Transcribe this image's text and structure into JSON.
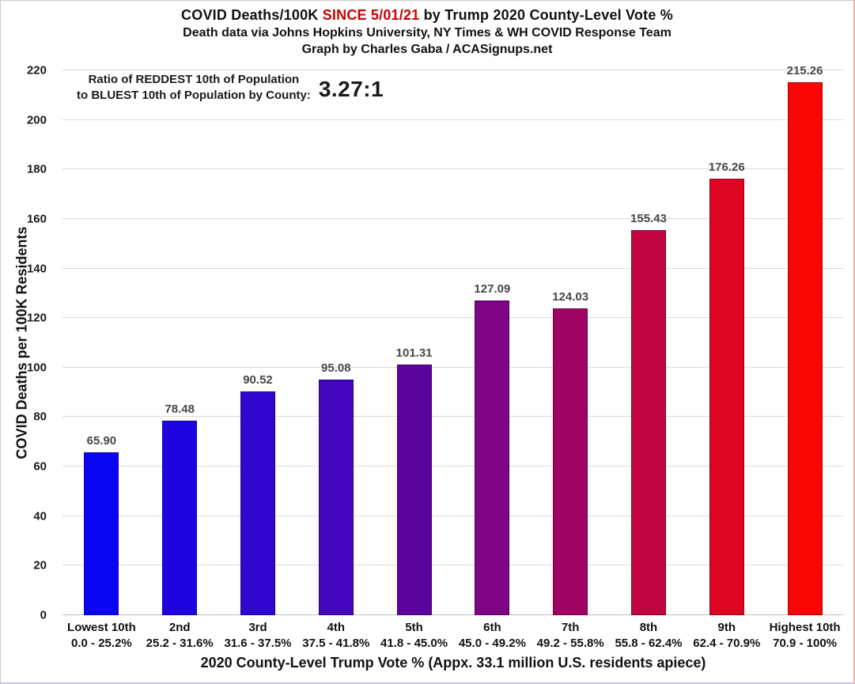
{
  "header": {
    "title_part1": "COVID Deaths/100K ",
    "title_highlight": "SINCE 5/01/21",
    "title_part2": " by Trump 2020 County-Level Vote %",
    "highlight_color": "#cc0000",
    "subtitle1": "Death data via Johns Hopkins University, NY Times & WH COVID Response Team",
    "subtitle2": "Graph by Charles Gaba / ACASignups.net"
  },
  "annotation": {
    "line1": "Ratio of REDDEST 10th of Population",
    "line2": "to BLUEST 10th of Population by County:",
    "ratio": "3.27:1"
  },
  "chart_data": {
    "type": "bar",
    "title": "COVID Deaths/100K SINCE 5/01/21 by Trump 2020 County-Level Vote %",
    "categories": [
      "Lowest 10th",
      "2nd",
      "3rd",
      "4th",
      "5th",
      "6th",
      "7th",
      "8th",
      "9th",
      "Highest 10th"
    ],
    "category_ranges": [
      "0.0 - 25.2%",
      "25.2 - 31.6%",
      "31.6 - 37.5%",
      "37.5 - 41.8%",
      "41.8 - 45.0%",
      "45.0 - 49.2%",
      "49.2 - 55.8%",
      "55.8 - 62.4%",
      "62.4 - 70.9%",
      "70.9 - 100%"
    ],
    "values": [
      65.9,
      78.48,
      90.52,
      95.08,
      101.31,
      127.09,
      124.03,
      155.43,
      176.26,
      215.26
    ],
    "bar_colors": [
      "#0b06f2",
      "#1e05e0",
      "#3106cf",
      "#4306bd",
      "#5c059e",
      "#7e0484",
      "#a00462",
      "#c20441",
      "#de0522",
      "#f90606"
    ],
    "value_label_color": "#474747",
    "grid": true,
    "grid_color": "#dadada",
    "legend": false,
    "xlabel": "2020 County-Level Trump Vote % (Appx. 33.1 million U.S. residents apiece)",
    "ylabel": "COVID Deaths per 100K Residents",
    "ylim": [
      0,
      220
    ],
    "ytick_step": 20
  }
}
